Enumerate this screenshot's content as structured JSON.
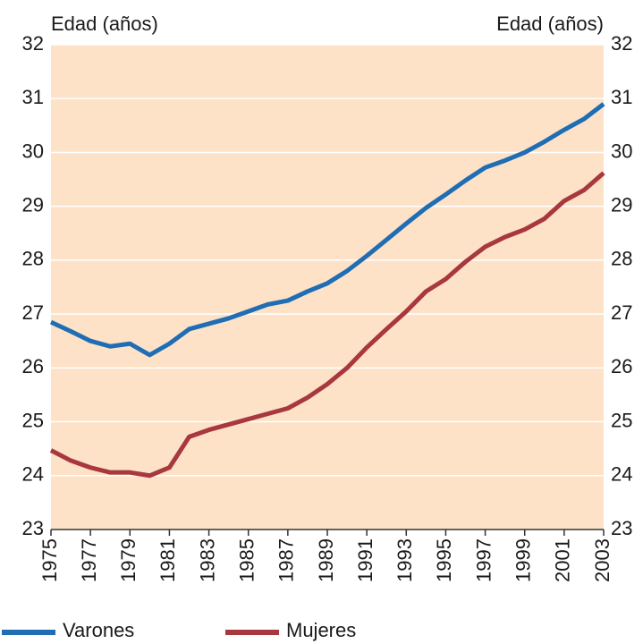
{
  "chart_data": {
    "type": "line",
    "ylabel": "Edad (años)",
    "y2label": "Edad (años)",
    "x": [
      1975,
      1976,
      1977,
      1978,
      1979,
      1980,
      1981,
      1982,
      1983,
      1984,
      1985,
      1986,
      1987,
      1988,
      1989,
      1990,
      1991,
      1992,
      1993,
      1994,
      1995,
      1996,
      1997,
      1998,
      1999,
      2000,
      2001,
      2002,
      2003
    ],
    "series": [
      {
        "name": "Varones",
        "color": "#1f6db4",
        "values": [
          26.85,
          26.68,
          26.5,
          26.4,
          26.45,
          26.24,
          26.45,
          26.72,
          26.82,
          26.92,
          27.05,
          27.18,
          27.25,
          27.42,
          27.57,
          27.8,
          28.08,
          28.38,
          28.68,
          28.97,
          29.22,
          29.48,
          29.72,
          29.85,
          30.0,
          30.2,
          30.42,
          30.62,
          30.9
        ]
      },
      {
        "name": "Mujeres",
        "color": "#a8383f",
        "values": [
          24.47,
          24.28,
          24.15,
          24.06,
          24.06,
          24.0,
          24.15,
          24.72,
          24.85,
          24.95,
          25.05,
          25.15,
          25.25,
          25.45,
          25.7,
          26.0,
          26.38,
          26.72,
          27.05,
          27.42,
          27.65,
          27.97,
          28.25,
          28.43,
          28.57,
          28.77,
          29.1,
          29.3,
          29.62
        ]
      }
    ],
    "xlim": [
      1975,
      2003
    ],
    "xticks": [
      1975,
      1977,
      1979,
      1981,
      1983,
      1985,
      1987,
      1989,
      1991,
      1993,
      1995,
      1997,
      1999,
      2001,
      2003
    ],
    "ylim": [
      23,
      32
    ],
    "yticks": [
      23,
      24,
      25,
      26,
      27,
      28,
      29,
      30,
      31,
      32
    ],
    "y2lim": [
      23,
      32
    ],
    "y2ticks": [
      23,
      24,
      25,
      26,
      27,
      28,
      29,
      30,
      31,
      32
    ],
    "grid": true,
    "legend": "bottom-left",
    "plot_background": "#fde2c7"
  }
}
